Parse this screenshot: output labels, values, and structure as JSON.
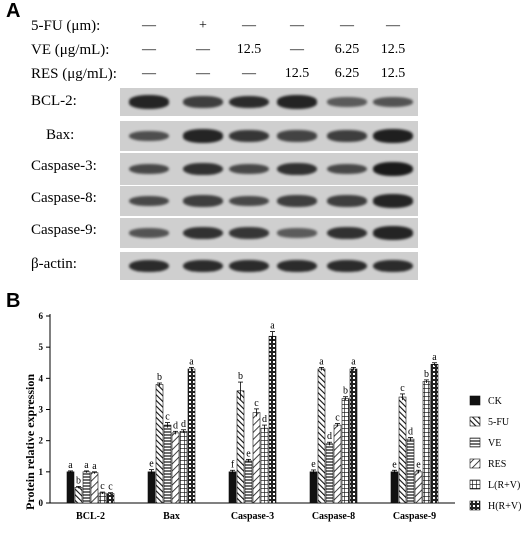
{
  "panel_a": {
    "letter": "A",
    "treatments": [
      {
        "label": "5-FU (μm):",
        "values": [
          "—",
          "+",
          "—",
          "—",
          "—",
          "—"
        ]
      },
      {
        "label": "VE (μg/mL):",
        "values": [
          "—",
          "—",
          "12.5",
          "—",
          "6.25",
          "12.5"
        ]
      },
      {
        "label": "RES (μg/mL):",
        "values": [
          "—",
          "—",
          "—",
          "12.5",
          "6.25",
          "12.5"
        ]
      }
    ],
    "blots": [
      {
        "label": "BCL-2:",
        "intensity": [
          0.9,
          0.7,
          0.85,
          0.9,
          0.45,
          0.5
        ]
      },
      {
        "label": "Bax:",
        "intensity": [
          0.55,
          0.9,
          0.75,
          0.65,
          0.7,
          0.95
        ]
      },
      {
        "label": "Caspase-3:",
        "intensity": [
          0.6,
          0.8,
          0.6,
          0.8,
          0.6,
          1.0
        ]
      },
      {
        "label": "Caspase-8:",
        "intensity": [
          0.6,
          0.7,
          0.6,
          0.7,
          0.7,
          0.9
        ]
      },
      {
        "label": "Caspase-9:",
        "intensity": [
          0.5,
          0.8,
          0.75,
          0.45,
          0.8,
          0.9
        ]
      },
      {
        "label": "β-actin:",
        "intensity": [
          0.85,
          0.85,
          0.85,
          0.85,
          0.85,
          0.85
        ]
      }
    ],
    "band_color": "#1a1a1a",
    "membrane_color": "#cfcfcf"
  },
  "panel_b": {
    "letter": "B"
  },
  "chart_data": {
    "type": "bar",
    "ylabel": "Protein relative expression",
    "ylim": [
      0,
      6
    ],
    "yticks": [
      0,
      1,
      2,
      3,
      4,
      5,
      6
    ],
    "categories": [
      "BCL-2",
      "Bax",
      "Caspase-3",
      "Caspase-8",
      "Caspase-9"
    ],
    "legend_position": "right",
    "series": [
      {
        "name": "CK",
        "color": "#111111",
        "pattern": "solid",
        "values": [
          1.0,
          1.0,
          1.0,
          1.0,
          1.0
        ],
        "errors": [
          0.03,
          0.07,
          0.05,
          0.06,
          0.05
        ],
        "letters": [
          "a",
          "e",
          "f",
          "e",
          "e"
        ]
      },
      {
        "name": "5-FU",
        "color": "#111111",
        "pattern": "diag",
        "values": [
          0.5,
          3.8,
          3.6,
          4.3,
          3.4
        ],
        "errors": [
          0.03,
          0.05,
          0.28,
          0.05,
          0.1
        ],
        "letters": [
          "b",
          "b",
          "b",
          "a",
          "c"
        ]
      },
      {
        "name": "VE",
        "color": "#111111",
        "pattern": "hlines",
        "values": [
          1.0,
          2.5,
          1.35,
          1.9,
          2.05
        ],
        "errors": [
          0.03,
          0.08,
          0.05,
          0.05,
          0.05
        ],
        "letters": [
          "a",
          "c",
          "e",
          "d",
          "d"
        ]
      },
      {
        "name": "RES",
        "color": "#111111",
        "pattern": "diag2",
        "values": [
          0.97,
          2.25,
          2.9,
          2.5,
          1.0
        ],
        "errors": [
          0.03,
          0.05,
          0.12,
          0.05,
          0.05
        ],
        "letters": [
          "a",
          "d",
          "c",
          "c",
          "e"
        ]
      },
      {
        "name": "L(R+V)",
        "color": "#111111",
        "pattern": "grid",
        "values": [
          0.32,
          2.3,
          2.4,
          3.35,
          3.9
        ],
        "errors": [
          0.03,
          0.05,
          0.1,
          0.06,
          0.05
        ],
        "letters": [
          "c",
          "d",
          "d",
          "b",
          "b"
        ]
      },
      {
        "name": "H(R+V)",
        "color": "#111111",
        "pattern": "dots",
        "values": [
          0.3,
          4.3,
          5.35,
          4.3,
          4.45
        ],
        "errors": [
          0.03,
          0.05,
          0.15,
          0.05,
          0.05
        ],
        "letters": [
          "c",
          "a",
          "a",
          "a",
          "a"
        ]
      }
    ]
  }
}
